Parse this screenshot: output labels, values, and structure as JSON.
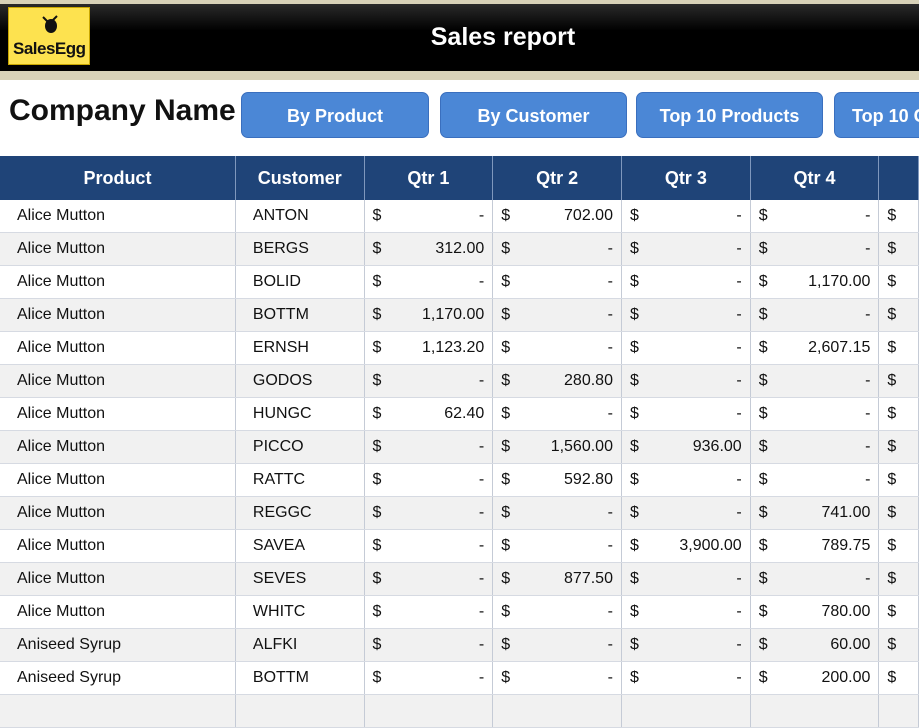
{
  "header": {
    "logo_text": "SalesEgg",
    "title": "Sales report",
    "colors": {
      "title_bg": "#000000",
      "logo_bg": "#fde24f",
      "band": "#d8d2b8"
    }
  },
  "company_name": "Company Name",
  "nav": [
    {
      "label": "By Product"
    },
    {
      "label": "By Customer"
    },
    {
      "label": "Top 10 Products"
    },
    {
      "label": "Top 10 C"
    }
  ],
  "table": {
    "currency": "$",
    "columns": [
      "Product",
      "Customer",
      "Qtr 1",
      "Qtr 2",
      "Qtr 3",
      "Qtr 4"
    ],
    "rows": [
      {
        "product": "Alice Mutton",
        "customer": "ANTON",
        "q1": "-",
        "q2": "702.00",
        "q3": "-",
        "q4": "-"
      },
      {
        "product": "Alice Mutton",
        "customer": "BERGS",
        "q1": "312.00",
        "q2": "-",
        "q3": "-",
        "q4": "-"
      },
      {
        "product": "Alice Mutton",
        "customer": "BOLID",
        "q1": "-",
        "q2": "-",
        "q3": "-",
        "q4": "1,170.00"
      },
      {
        "product": "Alice Mutton",
        "customer": "BOTTM",
        "q1": "1,170.00",
        "q2": "-",
        "q3": "-",
        "q4": "-"
      },
      {
        "product": "Alice Mutton",
        "customer": "ERNSH",
        "q1": "1,123.20",
        "q2": "-",
        "q3": "-",
        "q4": "2,607.15"
      },
      {
        "product": "Alice Mutton",
        "customer": "GODOS",
        "q1": "-",
        "q2": "280.80",
        "q3": "-",
        "q4": "-"
      },
      {
        "product": "Alice Mutton",
        "customer": "HUNGC",
        "q1": "62.40",
        "q2": "-",
        "q3": "-",
        "q4": "-"
      },
      {
        "product": "Alice Mutton",
        "customer": "PICCO",
        "q1": "-",
        "q2": "1,560.00",
        "q3": "936.00",
        "q4": "-"
      },
      {
        "product": "Alice Mutton",
        "customer": "RATTC",
        "q1": "-",
        "q2": "592.80",
        "q3": "-",
        "q4": "-"
      },
      {
        "product": "Alice Mutton",
        "customer": "REGGC",
        "q1": "-",
        "q2": "-",
        "q3": "-",
        "q4": "741.00"
      },
      {
        "product": "Alice Mutton",
        "customer": "SAVEA",
        "q1": "-",
        "q2": "-",
        "q3": "3,900.00",
        "q4": "789.75"
      },
      {
        "product": "Alice Mutton",
        "customer": "SEVES",
        "q1": "-",
        "q2": "877.50",
        "q3": "-",
        "q4": "-"
      },
      {
        "product": "Alice Mutton",
        "customer": "WHITC",
        "q1": "-",
        "q2": "-",
        "q3": "-",
        "q4": "780.00"
      },
      {
        "product": "Aniseed Syrup",
        "customer": "ALFKI",
        "q1": "-",
        "q2": "-",
        "q3": "-",
        "q4": "60.00"
      },
      {
        "product": "Aniseed Syrup",
        "customer": "BOTTM",
        "q1": "-",
        "q2": "-",
        "q3": "-",
        "q4": "200.00"
      },
      {
        "product": "",
        "customer": "",
        "q1": "",
        "q2": "",
        "q3": "",
        "q4": ""
      }
    ]
  }
}
